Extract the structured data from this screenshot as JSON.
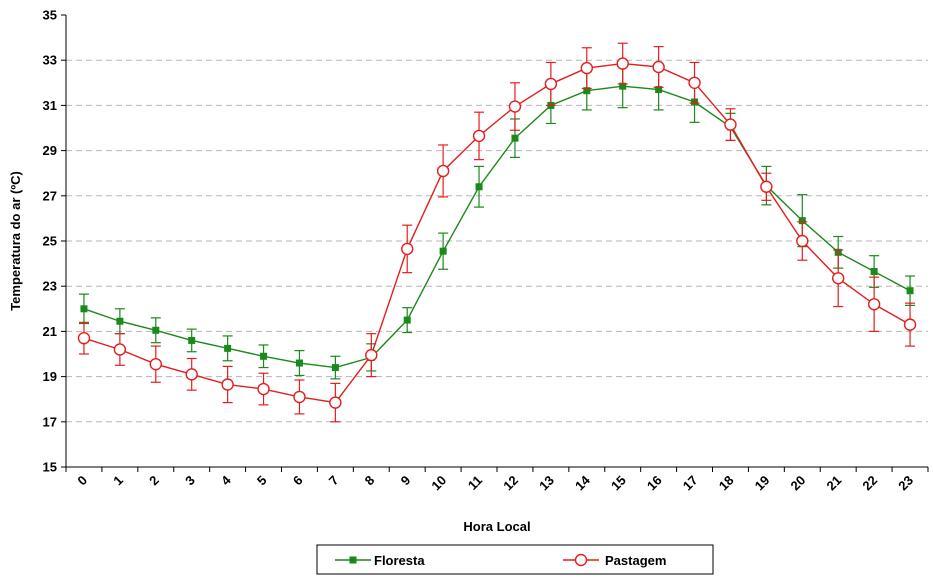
{
  "chart_data": {
    "type": "line",
    "xlabel": "Hora Local",
    "ylabel": "Temperatura do ar (ºC)",
    "categories": [
      "0",
      "1",
      "2",
      "3",
      "4",
      "5",
      "6",
      "7",
      "8",
      "9",
      "10",
      "11",
      "12",
      "13",
      "14",
      "15",
      "16",
      "17",
      "18",
      "19",
      "20",
      "21",
      "22",
      "23"
    ],
    "ylim": [
      15,
      35
    ],
    "yticks": [
      "15",
      "17",
      "19",
      "21",
      "23",
      "25",
      "27",
      "29",
      "31",
      "33",
      "35"
    ],
    "grid": true,
    "legend_position": "bottom",
    "series": [
      {
        "name": "Floresta",
        "color": "#1a8a1a",
        "marker": "square",
        "values": [
          22.0,
          21.45,
          21.05,
          20.6,
          20.25,
          19.9,
          19.6,
          19.4,
          19.85,
          21.5,
          24.55,
          27.4,
          29.55,
          31.0,
          31.65,
          31.85,
          31.7,
          31.15,
          30.05,
          27.45,
          25.9,
          24.5,
          23.65,
          22.8
        ],
        "errors": [
          0.65,
          0.55,
          0.55,
          0.5,
          0.55,
          0.5,
          0.55,
          0.5,
          0.6,
          0.55,
          0.8,
          0.9,
          0.85,
          0.8,
          0.85,
          0.95,
          0.9,
          0.9,
          0.6,
          0.85,
          1.15,
          0.7,
          0.7,
          0.65
        ]
      },
      {
        "name": "Pastagem",
        "color": "#e41e1e",
        "marker": "circle",
        "values": [
          20.7,
          20.2,
          19.55,
          19.1,
          18.65,
          18.45,
          18.1,
          17.85,
          19.95,
          24.65,
          28.1,
          29.65,
          30.95,
          31.95,
          32.65,
          32.85,
          32.7,
          32.0,
          30.15,
          27.4,
          25.0,
          23.35,
          22.2,
          21.3
        ],
        "errors": [
          0.7,
          0.7,
          0.8,
          0.7,
          0.8,
          0.7,
          0.75,
          0.85,
          0.95,
          1.05,
          1.15,
          1.05,
          1.05,
          0.95,
          0.9,
          0.9,
          0.9,
          0.9,
          0.7,
          0.6,
          0.85,
          1.25,
          1.2,
          0.95
        ]
      }
    ]
  }
}
